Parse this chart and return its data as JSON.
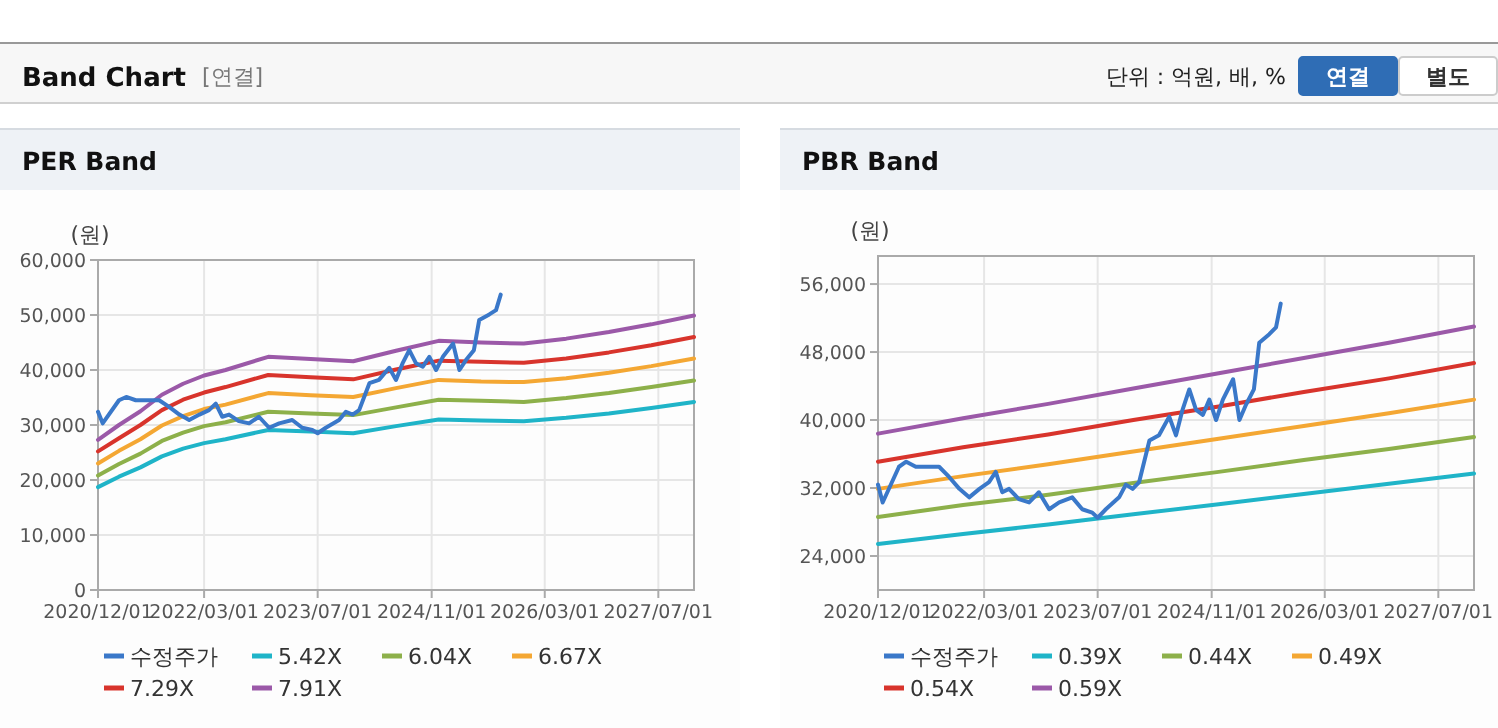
{
  "chart_data": [
    {
      "type": "other",
      "title": "Band Chart",
      "annotations": [
        "[연결]",
        "단위 : 억원, 배, %",
        "연결",
        "별도"
      ]
    },
    {
      "type": "line",
      "title": "PER Band",
      "ylabel": "(원)",
      "legend": "bottom",
      "grid": true,
      "xlim": [
        "2020-12-01",
        "2027-12-01"
      ],
      "xticks": [
        {
          "value": "2020-12-01",
          "label": "2020/12/01"
        },
        {
          "value": "2022-03-01",
          "label": "2022/03/01"
        },
        {
          "value": "2023-07-01",
          "label": "2023/07/01"
        },
        {
          "value": "2024-11-01",
          "label": "2024/11/01"
        },
        {
          "value": "2026-03-01",
          "label": "2026/03/01"
        },
        {
          "value": "2027-07-01",
          "label": "2027/07/01"
        }
      ],
      "ylim": [
        0,
        60000
      ],
      "yticks": [
        0,
        {
          "value": 10000,
          "label": "10,000"
        },
        {
          "value": 20000,
          "label": "20,000"
        },
        {
          "value": 30000,
          "label": "30,000"
        },
        {
          "value": 40000,
          "label": "40,000"
        },
        {
          "value": 50000,
          "label": "50,000"
        },
        {
          "value": 60000,
          "label": "60,000"
        }
      ],
      "x": [
        "2020-12-01",
        "2021-03-01",
        "2021-06-01",
        "2021-09-01",
        "2021-12-01",
        "2022-03-01",
        "2022-06-01",
        "2022-12-01",
        "2023-06-01",
        "2023-12-01",
        "2024-06-01",
        "2024-12-01",
        "2025-06-01",
        "2025-12-01",
        "2026-06-01",
        "2026-12-01",
        "2027-06-01",
        "2027-12-01"
      ],
      "series": [
        {
          "name": "수정주가",
          "color": "#3a78c9",
          "x": [
            "2020-12-01",
            "2020-12-21",
            "2021-03-01",
            "2021-04-01",
            "2021-05-12",
            "2021-06-24",
            "2021-08-20",
            "2021-10-02",
            "2021-11-15",
            "2021-12-27",
            "2022-02-09",
            "2022-03-22",
            "2022-04-20",
            "2022-05-18",
            "2022-06-16",
            "2022-07-28",
            "2022-09-10",
            "2022-10-22",
            "2022-12-05",
            "2023-01-17",
            "2023-03-14",
            "2023-04-26",
            "2023-06-08",
            "2023-07-01",
            "2023-08-05",
            "2023-10-01",
            "2023-10-30",
            "2023-11-28",
            "2023-12-26",
            "2024-02-08",
            "2024-03-20",
            "2024-05-03",
            "2024-06-01",
            "2024-06-29",
            "2024-07-28",
            "2024-08-26",
            "2024-09-24",
            "2024-10-22",
            "2024-11-20",
            "2024-12-19",
            "2025-02-01",
            "2025-02-28",
            "2025-03-28",
            "2025-05-01",
            "2025-05-24",
            "2025-07-06",
            "2025-08-04",
            "2025-08-24"
          ],
          "values": [
            32400,
            30300,
            34500,
            35100,
            34500,
            34500,
            34500,
            33300,
            31900,
            30900,
            31900,
            32700,
            33900,
            31500,
            31900,
            30700,
            30300,
            31500,
            29500,
            30300,
            30900,
            29500,
            29100,
            28500,
            29500,
            30900,
            32400,
            31900,
            32700,
            37600,
            38200,
            40400,
            38200,
            41200,
            43600,
            41200,
            40600,
            42400,
            40000,
            42400,
            44800,
            40000,
            41800,
            43600,
            49100,
            50100,
            50900,
            53700
          ]
        },
        {
          "name": "5.42X",
          "color": "#1fb4c8",
          "values": [
            18700,
            20600,
            22300,
            24300,
            25700,
            26700,
            27400,
            29100,
            28800,
            28500,
            29800,
            31000,
            30800,
            30700,
            31300,
            32100,
            33100,
            34200
          ]
        },
        {
          "name": "6.04X",
          "color": "#8db04a",
          "values": [
            20800,
            22900,
            24800,
            27100,
            28600,
            29800,
            30500,
            32400,
            32100,
            31800,
            33200,
            34600,
            34400,
            34200,
            34900,
            35800,
            36900,
            38100
          ]
        },
        {
          "name": "6.67X",
          "color": "#f4a733",
          "values": [
            23000,
            25300,
            27400,
            29900,
            31600,
            32900,
            33700,
            35800,
            35400,
            35100,
            36700,
            38200,
            37900,
            37800,
            38500,
            39500,
            40700,
            42100
          ]
        },
        {
          "name": "7.29X",
          "color": "#d8342c",
          "values": [
            25200,
            27600,
            30000,
            32700,
            34600,
            35900,
            36900,
            39100,
            38700,
            38300,
            40100,
            41700,
            41500,
            41300,
            42100,
            43200,
            44500,
            46000
          ]
        },
        {
          "name": "7.91X",
          "color": "#9b59a8",
          "values": [
            27300,
            30000,
            32500,
            35500,
            37500,
            39000,
            40000,
            42400,
            42000,
            41600,
            43500,
            45300,
            45000,
            44800,
            45700,
            46900,
            48300,
            49900
          ]
        }
      ]
    },
    {
      "type": "line",
      "title": "PBR Band",
      "ylabel": "(원)",
      "legend": "bottom",
      "grid": true,
      "xlim": [
        "2020-12-01",
        "2027-12-01"
      ],
      "xticks": [
        {
          "value": "2020-12-01",
          "label": "2020/12/01"
        },
        {
          "value": "2022-03-01",
          "label": "2022/03/01"
        },
        {
          "value": "2023-07-01",
          "label": "2023/07/01"
        },
        {
          "value": "2024-11-01",
          "label": "2024/11/01"
        },
        {
          "value": "2026-03-01",
          "label": "2026/03/01"
        },
        {
          "value": "2027-07-01",
          "label": "2027/07/01"
        }
      ],
      "ylim": [
        20000,
        59300
      ],
      "yticks": [
        {
          "value": 24000,
          "label": "24,000"
        },
        {
          "value": 32000,
          "label": "32,000"
        },
        {
          "value": 40000,
          "label": "40,000"
        },
        {
          "value": 48000,
          "label": "48,000"
        },
        {
          "value": 56000,
          "label": "56,000"
        }
      ],
      "x": [
        "2020-12-01",
        "2021-12-01",
        "2022-12-01",
        "2023-12-01",
        "2024-12-01",
        "2025-12-01",
        "2026-12-01",
        "2027-12-01"
      ],
      "series": [
        {
          "name": "수정주가",
          "color": "#3a78c9",
          "x": [
            "2020-12-01",
            "2020-12-21",
            "2021-03-01",
            "2021-04-01",
            "2021-05-12",
            "2021-06-24",
            "2021-08-20",
            "2021-10-02",
            "2021-11-15",
            "2021-12-27",
            "2022-02-09",
            "2022-03-22",
            "2022-04-20",
            "2022-05-18",
            "2022-06-16",
            "2022-07-28",
            "2022-09-10",
            "2022-10-22",
            "2022-12-05",
            "2023-01-17",
            "2023-03-14",
            "2023-04-26",
            "2023-06-08",
            "2023-07-01",
            "2023-08-05",
            "2023-10-01",
            "2023-10-30",
            "2023-11-28",
            "2023-12-26",
            "2024-02-08",
            "2024-03-20",
            "2024-05-03",
            "2024-06-01",
            "2024-06-29",
            "2024-07-28",
            "2024-08-26",
            "2024-09-24",
            "2024-10-22",
            "2024-11-20",
            "2024-12-19",
            "2025-02-01",
            "2025-02-28",
            "2025-03-28",
            "2025-05-01",
            "2025-05-24",
            "2025-07-06",
            "2025-08-04",
            "2025-08-24"
          ],
          "values": [
            32400,
            30300,
            34500,
            35100,
            34500,
            34500,
            34500,
            33300,
            31900,
            30900,
            31900,
            32700,
            33900,
            31500,
            31900,
            30700,
            30300,
            31500,
            29500,
            30300,
            30900,
            29500,
            29100,
            28500,
            29500,
            30900,
            32400,
            31900,
            32700,
            37600,
            38200,
            40400,
            38200,
            41200,
            43600,
            41200,
            40600,
            42400,
            40000,
            42400,
            44800,
            40000,
            41800,
            43600,
            49100,
            50100,
            50900,
            53700
          ]
        },
        {
          "name": "0.39X",
          "color": "#1fb4c8",
          "values": [
            25400,
            26600,
            27700,
            28900,
            30100,
            31300,
            32500,
            33700
          ]
        },
        {
          "name": "0.44X",
          "color": "#8db04a",
          "values": [
            28600,
            30000,
            31200,
            32600,
            33900,
            35300,
            36600,
            38000
          ]
        },
        {
          "name": "0.49X",
          "color": "#f4a733",
          "values": [
            31900,
            33400,
            34800,
            36300,
            37800,
            39300,
            40800,
            42400
          ]
        },
        {
          "name": "0.54X",
          "color": "#d8342c",
          "values": [
            35100,
            36800,
            38300,
            40000,
            41600,
            43300,
            44900,
            46700
          ]
        },
        {
          "name": "0.59X",
          "color": "#9b59a8",
          "values": [
            38400,
            40200,
            41900,
            43700,
            45500,
            47300,
            49100,
            51000
          ]
        }
      ]
    }
  ]
}
